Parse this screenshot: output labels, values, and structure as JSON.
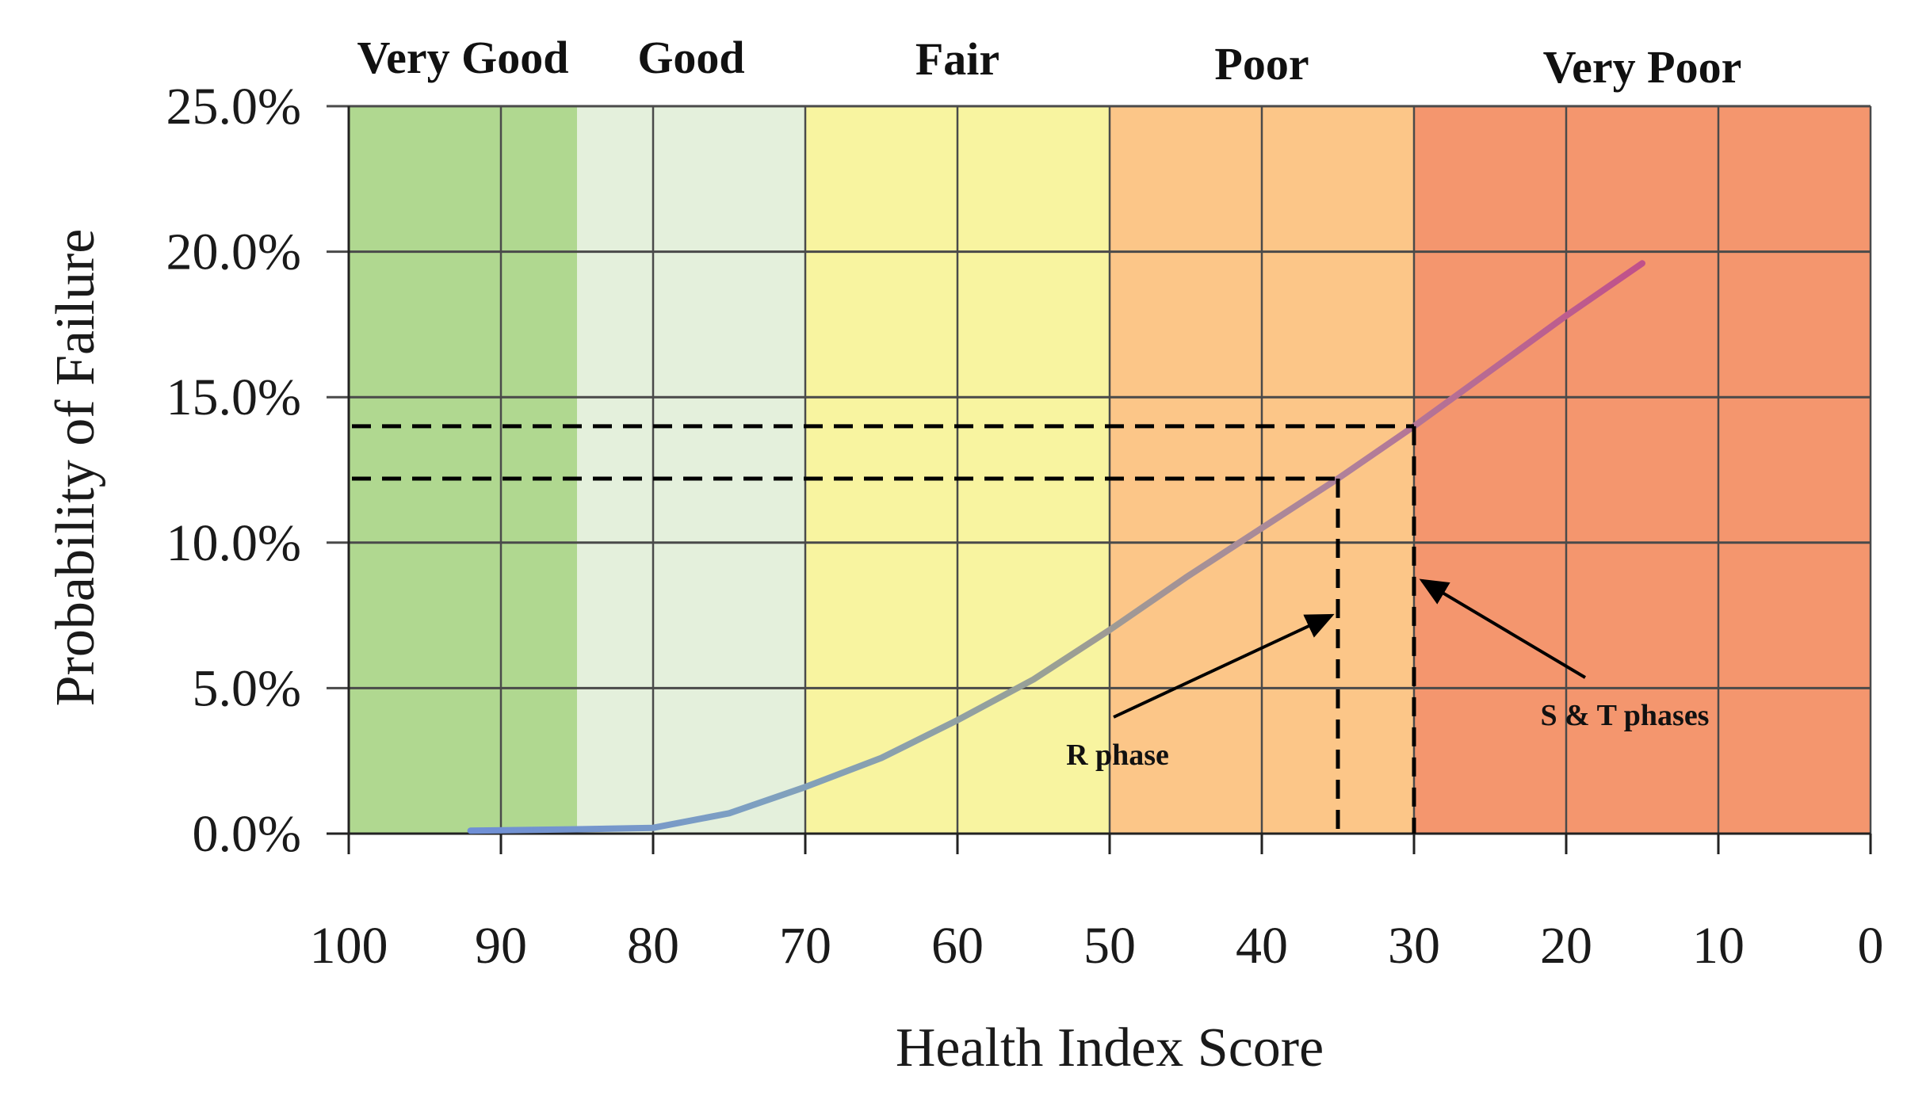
{
  "chart_data": {
    "type": "line",
    "xlabel": "Health Index Score",
    "ylabel": "Probability of Failure",
    "xlim": [
      100,
      0
    ],
    "ylim": [
      0,
      25
    ],
    "x_ticks": [
      "100",
      "90",
      "80",
      "70",
      "60",
      "50",
      "40",
      "30",
      "20",
      "10",
      "0"
    ],
    "y_ticks": [
      "0.0%",
      "5.0%",
      "10.0%",
      "15.0%",
      "20.0%",
      "25.0%"
    ],
    "grid": true,
    "bands": [
      {
        "label": "Very Good",
        "from": 100,
        "to": 85,
        "color": "#b0d890"
      },
      {
        "label": "Good",
        "from": 85,
        "to": 70,
        "color": "#e4f0dc"
      },
      {
        "label": "Fair",
        "from": 70,
        "to": 50,
        "color": "#f8f4a0"
      },
      {
        "label": "Poor",
        "from": 50,
        "to": 30,
        "color": "#fcc688"
      },
      {
        "label": "Very Poor",
        "from": 30,
        "to": 0,
        "color": "#f4966e"
      }
    ],
    "series": [
      {
        "x": [
          92,
          85,
          80,
          75,
          70,
          65,
          60,
          55,
          50,
          45,
          40,
          35,
          30,
          25,
          20,
          15
        ],
        "y": [
          0.1,
          0.15,
          0.2,
          0.7,
          1.6,
          2.6,
          3.9,
          5.3,
          7.0,
          8.8,
          10.5,
          12.2,
          14.0,
          15.9,
          17.8,
          19.6
        ],
        "colors": [
          "#6f8fd6",
          "#7ea0c0",
          "#9aa094",
          "#b0809a",
          "#c0508a"
        ]
      }
    ],
    "reference_lines": [
      {
        "x": 35,
        "y": 12.2,
        "label": "R phase"
      },
      {
        "x": 30,
        "y": 14.0,
        "label": "S & T phases"
      }
    ]
  }
}
